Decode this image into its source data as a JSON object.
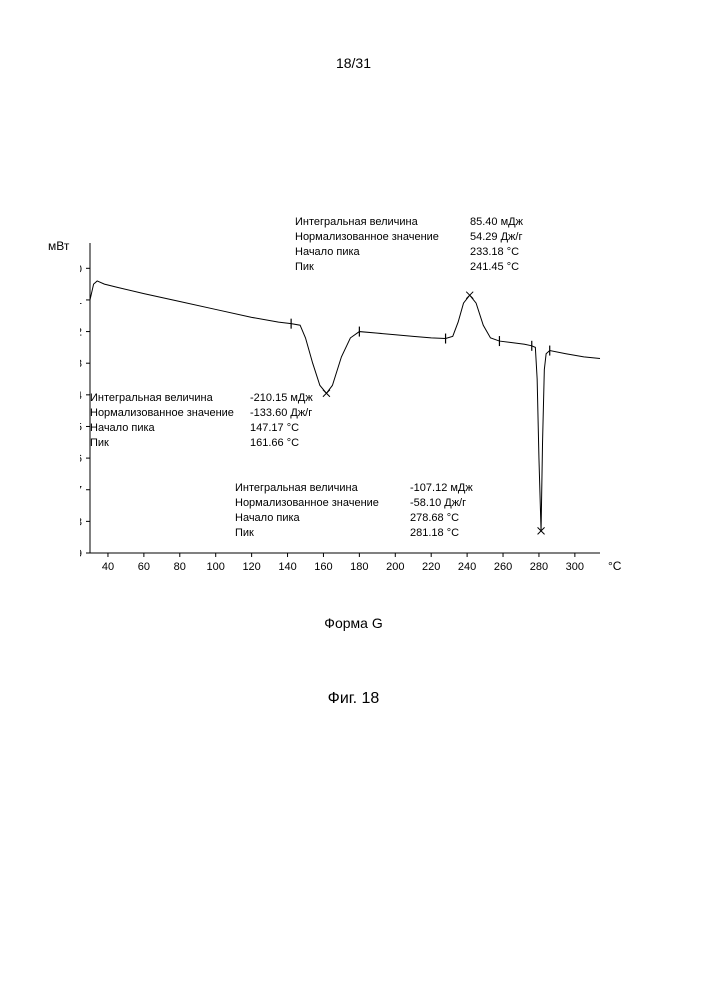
{
  "page_header": "18/31",
  "form_label": "Форма G",
  "figure_label": "Фиг. 18",
  "chart": {
    "type": "line",
    "y_unit": "мВт",
    "x_unit": "°C",
    "xlim": [
      30,
      314
    ],
    "ylim": [
      -9,
      0.8
    ],
    "xticks": [
      40,
      60,
      80,
      100,
      120,
      140,
      160,
      180,
      200,
      220,
      240,
      260,
      280,
      300
    ],
    "yticks": [
      0,
      -1,
      -2,
      -3,
      -4,
      -5,
      -6,
      -7,
      -8,
      -9
    ],
    "line_color": "#000000",
    "axis_color": "#000000",
    "background": "#ffffff",
    "line_width": 1.0,
    "curve": [
      [
        30,
        -1.0
      ],
      [
        32,
        -0.5
      ],
      [
        34,
        -0.4
      ],
      [
        38,
        -0.5
      ],
      [
        45,
        -0.6
      ],
      [
        60,
        -0.8
      ],
      [
        80,
        -1.05
      ],
      [
        100,
        -1.3
      ],
      [
        120,
        -1.55
      ],
      [
        135,
        -1.7
      ],
      [
        142,
        -1.75
      ],
      [
        147,
        -1.8
      ],
      [
        150,
        -2.2
      ],
      [
        154,
        -3.0
      ],
      [
        158,
        -3.7
      ],
      [
        161.66,
        -3.95
      ],
      [
        165,
        -3.7
      ],
      [
        170,
        -2.8
      ],
      [
        175,
        -2.2
      ],
      [
        180,
        -2.0
      ],
      [
        190,
        -2.05
      ],
      [
        200,
        -2.1
      ],
      [
        210,
        -2.15
      ],
      [
        220,
        -2.2
      ],
      [
        228,
        -2.22
      ],
      [
        232,
        -2.15
      ],
      [
        235,
        -1.7
      ],
      [
        238,
        -1.1
      ],
      [
        241.45,
        -0.85
      ],
      [
        245,
        -1.1
      ],
      [
        249,
        -1.8
      ],
      [
        253,
        -2.2
      ],
      [
        258,
        -2.3
      ],
      [
        265,
        -2.35
      ],
      [
        272,
        -2.4
      ],
      [
        276,
        -2.45
      ],
      [
        278,
        -2.5
      ],
      [
        279,
        -3.5
      ],
      [
        280,
        -6.0
      ],
      [
        281.18,
        -8.3
      ],
      [
        282,
        -5.5
      ],
      [
        283,
        -3.2
      ],
      [
        284,
        -2.7
      ],
      [
        286,
        -2.6
      ],
      [
        295,
        -2.7
      ],
      [
        305,
        -2.8
      ],
      [
        314,
        -2.85
      ]
    ],
    "markers": [
      {
        "x": 142,
        "type": "tick"
      },
      {
        "x": 161.66,
        "type": "x",
        "y": -3.95
      },
      {
        "x": 180,
        "type": "tick"
      },
      {
        "x": 228,
        "type": "tick"
      },
      {
        "x": 241.45,
        "type": "x",
        "y": -0.85
      },
      {
        "x": 258,
        "type": "tick"
      },
      {
        "x": 276,
        "type": "tick"
      },
      {
        "x": 281.18,
        "type": "x",
        "y": -8.3
      },
      {
        "x": 286,
        "type": "tick"
      }
    ]
  },
  "annotations": [
    {
      "pos": "top",
      "label_width": 175,
      "rows": [
        {
          "label": "Интегральная величина",
          "value": "85.40 мДж"
        },
        {
          "label": "Нормализованное значение",
          "value": "54.29 Дж/г"
        },
        {
          "label": "Начало пика",
          "value": "233.18 °C"
        },
        {
          "label": "Пик",
          "value": "241.45 °C"
        }
      ]
    },
    {
      "pos": "mid",
      "label_width": 160,
      "rows": [
        {
          "label": "Интегральная величина",
          "value": "-210.15 мДж"
        },
        {
          "label": "Нормализованное значение",
          "value": "-133.60 Дж/г"
        },
        {
          "label": "Начало пика",
          "value": "147.17 °C"
        },
        {
          "label": "Пик",
          "value": "161.66 °C"
        }
      ]
    },
    {
      "pos": "bot",
      "label_width": 175,
      "rows": [
        {
          "label": "Интегральная величина",
          "value": "-107.12 мДж"
        },
        {
          "label": "Нормализованное значение",
          "value": "-58.10 Дж/г"
        },
        {
          "label": "Начало пика",
          "value": "278.68 °C"
        },
        {
          "label": "Пик",
          "value": "281.18 °C"
        }
      ]
    }
  ]
}
